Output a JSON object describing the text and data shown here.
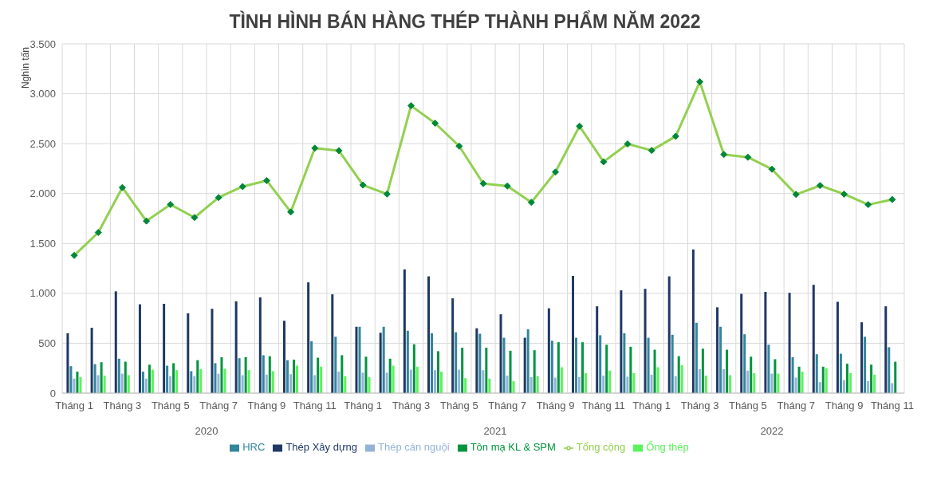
{
  "chart_data": {
    "type": "bar",
    "title": "TÌNH HÌNH BÁN HÀNG THÉP THÀNH PHẨM NĂM 2022",
    "ylabel": "Nghìn tấn",
    "categories": [
      "Tháng 1",
      null,
      "Tháng 3",
      null,
      "Tháng 5",
      null,
      "Tháng 7",
      null,
      "Tháng 9",
      null,
      "Tháng 11",
      null,
      "Tháng 1",
      null,
      "Tháng 3",
      null,
      "Tháng 5",
      null,
      "Tháng 7",
      null,
      "Tháng 9",
      null,
      "Tháng 11",
      null,
      "Tháng 1",
      null,
      "Tháng 3",
      null,
      "Tháng 5",
      null,
      "Tháng 7",
      null,
      "Tháng 9",
      null,
      "Tháng 11"
    ],
    "annotations": [
      "2020",
      "2021",
      "2022"
    ],
    "series": [
      {
        "name": "Thép Xây dựng",
        "color": "#1f3864",
        "values": [
          600,
          655,
          1020,
          890,
          895,
          800,
          845,
          920,
          960,
          725,
          1110,
          990,
          665,
          605,
          1240,
          1170,
          950,
          650,
          790,
          555,
          850,
          1175,
          870,
          1030,
          1045,
          1170,
          1440,
          860,
          995,
          1015,
          1005,
          1085,
          915,
          710,
          870
        ]
      },
      {
        "name": "HRC",
        "color": "#31859c",
        "values": [
          270,
          290,
          345,
          215,
          275,
          220,
          300,
          350,
          380,
          330,
          520,
          565,
          665,
          665,
          625,
          600,
          610,
          595,
          555,
          640,
          525,
          555,
          580,
          600,
          555,
          585,
          705,
          665,
          590,
          485,
          360,
          390,
          395,
          565,
          460
        ]
      },
      {
        "name": "Thép cán nguội",
        "color": "#95b3d7",
        "values": [
          145,
          180,
          195,
          145,
          170,
          170,
          195,
          180,
          185,
          190,
          180,
          215,
          205,
          205,
          235,
          230,
          235,
          230,
          175,
          160,
          155,
          160,
          175,
          165,
          185,
          170,
          240,
          240,
          225,
          195,
          155,
          110,
          130,
          120,
          100
        ]
      },
      {
        "name": "Tôn mạ KL & SPM",
        "color": "#00943e",
        "values": [
          215,
          310,
          315,
          285,
          300,
          330,
          360,
          360,
          370,
          335,
          355,
          380,
          365,
          345,
          490,
          420,
          455,
          455,
          425,
          430,
          510,
          510,
          485,
          465,
          435,
          370,
          445,
          435,
          365,
          340,
          265,
          265,
          295,
          285,
          315
        ]
      },
      {
        "name": "Ống thép",
        "color": "#5af35a",
        "values": [
          160,
          175,
          180,
          235,
          230,
          240,
          245,
          230,
          220,
          275,
          265,
          170,
          160,
          275,
          265,
          215,
          150,
          145,
          120,
          170,
          260,
          200,
          225,
          200,
          260,
          280,
          175,
          180,
          200,
          195,
          215,
          250,
          200,
          185,
          null
        ]
      },
      {
        "name": "Tổng cộng",
        "type": "line",
        "color": "#92d050",
        "marker": "diamond",
        "values": [
          1380,
          1610,
          2060,
          1725,
          1890,
          1760,
          1960,
          2070,
          2130,
          1815,
          2455,
          2430,
          2085,
          1995,
          2880,
          2705,
          2475,
          2100,
          2075,
          1912,
          2215,
          2675,
          2318,
          2497,
          2432,
          2574,
          3120,
          2392,
          2364,
          2244,
          1991,
          2080,
          1994,
          1889,
          1940
        ]
      }
    ],
    "ylim": [
      0,
      3500
    ],
    "yticks": [
      0,
      500,
      {
        "value": 1000,
        "label": "1.000"
      },
      {
        "value": 1500,
        "label": "1.500"
      },
      {
        "value": 2000,
        "label": "2.000"
      },
      {
        "value": 2500,
        "label": "2.500"
      },
      {
        "value": 3000,
        "label": "3.000"
      },
      {
        "value": 3500,
        "label": "3.500"
      }
    ],
    "grid": true,
    "legend": "bottom"
  }
}
